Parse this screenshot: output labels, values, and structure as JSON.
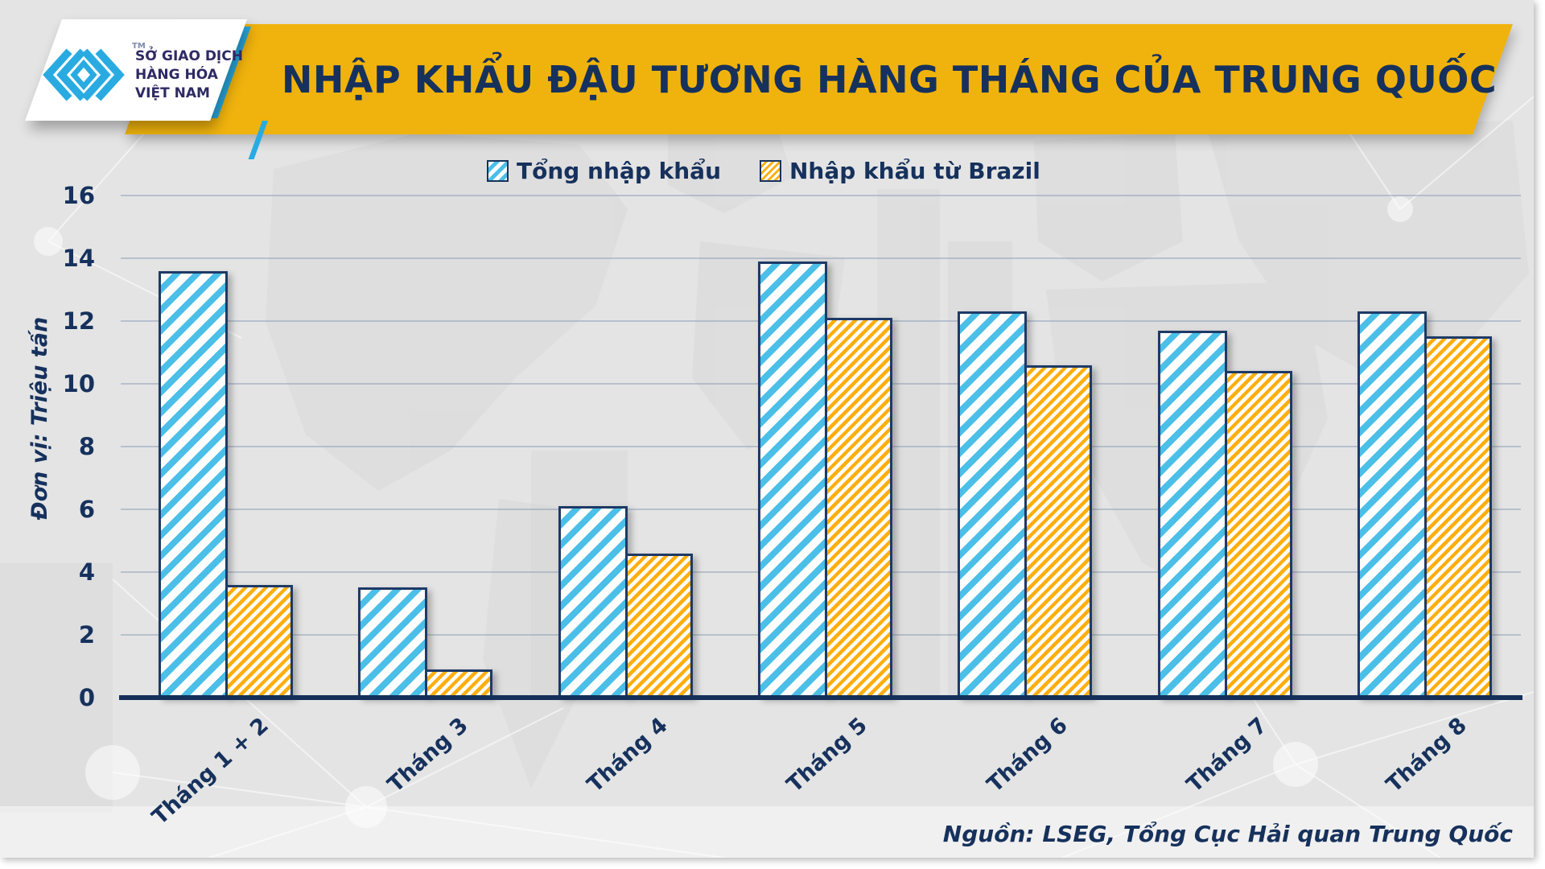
{
  "header": {
    "logo": {
      "line1": "SỞ GIAO DỊCH",
      "line2": "HÀNG HÓA",
      "line3": "VIỆT NAM",
      "tm": "TM"
    },
    "title": "NHẬP KHẨU ĐẬU TƯƠNG HÀNG THÁNG CỦA TRUNG QUỐC"
  },
  "legend": {
    "items": [
      {
        "label": "Tổng nhập khẩu",
        "color": "#4BBFE8"
      },
      {
        "label": "Nhập khẩu từ Brazil",
        "color": "#FFAE0D"
      }
    ]
  },
  "axis": {
    "y_title": "Đơn vị: Triệu tấn",
    "y_ticks": [
      0,
      2,
      4,
      6,
      8,
      10,
      12,
      14,
      16
    ]
  },
  "source": "Nguồn: LSEG, Tổng Cục Hải quan Trung Quốc",
  "colors": {
    "banner_gold": "#F0B30D",
    "navy_text": "#16315C",
    "bar_border_navy": "#1E3A66",
    "total_blue": "#4BBFE8",
    "brazil_yellow": "#FFAE0D",
    "accent_cyan": "#29ABE2",
    "panel_gray": "#E4E4E4"
  },
  "chart_data": {
    "type": "bar",
    "title": "NHẬP KHẨU ĐẬU TƯƠNG HÀNG THÁNG CỦA TRUNG QUỐC",
    "categories": [
      "Tháng 1 + 2",
      "Tháng 3",
      "Tháng 4",
      "Tháng 5",
      "Tháng 6",
      "Tháng 7",
      "Tháng 8"
    ],
    "series": [
      {
        "name": "Tổng nhập khẩu",
        "values": [
          13.6,
          3.5,
          6.1,
          13.9,
          12.3,
          11.7,
          12.3
        ]
      },
      {
        "name": "Nhập khẩu từ Brazil",
        "values": [
          3.6,
          0.9,
          4.6,
          12.1,
          10.6,
          10.4,
          11.5
        ]
      }
    ],
    "xlabel": "",
    "ylabel": "Đơn vị: Triệu tấn",
    "ylim": [
      0,
      16
    ],
    "y_tick_step": 2,
    "grid": true,
    "legend_position": "top",
    "hatch": "diagonal-stripes",
    "source": "Nguồn: LSEG, Tổng Cục Hải quan Trung Quốc"
  }
}
